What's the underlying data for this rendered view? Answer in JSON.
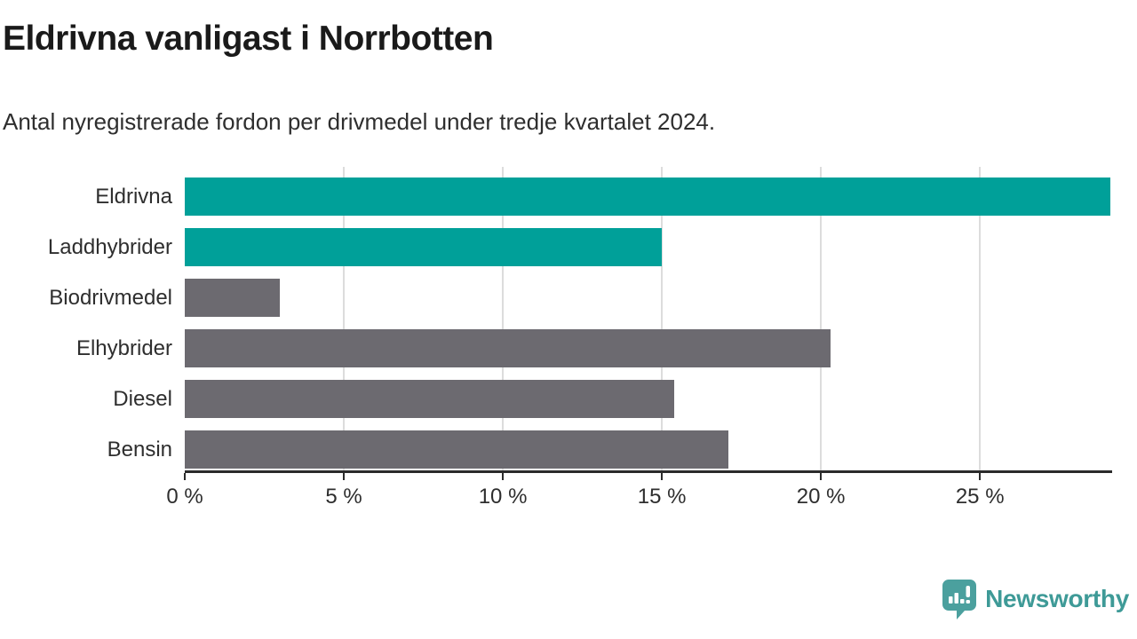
{
  "header": {
    "title": "Eldrivna vanligast i Norrbotten",
    "subtitle": "Antal nyregistrerade fordon per drivmedel under tredje kvartalet 2024."
  },
  "chart_data": {
    "type": "bar",
    "orientation": "horizontal",
    "title": "Eldrivna vanligast i Norrbotten",
    "subtitle": "Antal nyregistrerade fordon per drivmedel under tredje kvartalet 2024.",
    "categories": [
      "Eldrivna",
      "Laddhybrider",
      "Biodrivmedel",
      "Elhybrider",
      "Diesel",
      "Bensin"
    ],
    "values": [
      29.1,
      15.0,
      3.0,
      20.3,
      15.4,
      17.1
    ],
    "unit": "%",
    "bar_colors": [
      "#00a099",
      "#00a099",
      "#6c6a70",
      "#6c6a70",
      "#6c6a70",
      "#6c6a70"
    ],
    "xlabel": "",
    "ylabel": "",
    "xlim": [
      0,
      29.1
    ],
    "x_tick_values": [
      0,
      5,
      10,
      15,
      20,
      25
    ],
    "x_tick_labels": [
      "0 %",
      "5 %",
      "10 %",
      "15 %",
      "20 %",
      "25 %"
    ],
    "grid": "vertical-only",
    "legend": "none"
  },
  "footer": {
    "brand": "Newsworthy",
    "logo_icon": "newsworthy-speech-bubble-barchart-icon"
  },
  "colors": {
    "teal": "#00a099",
    "gray": "#6c6a70",
    "grid": "#dcdcdc",
    "axis": "#2b2b2b",
    "text": "#2e2e2e",
    "title_text": "#1a1a1a",
    "logo_icon": "#4ba09e",
    "logo_text": "#3e9a97"
  }
}
